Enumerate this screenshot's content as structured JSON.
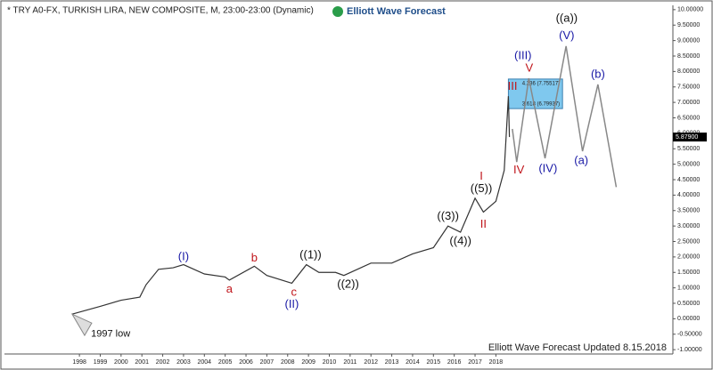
{
  "chart_data": {
    "type": "line",
    "title": "* TRY A0-FX, TURKISH LIRA, NEW COMPOSITE, M, 23:00-23:00 (Dynamic)",
    "logo": "Elliott Wave Forecast",
    "footer": "Elliott Wave Forecast Updated 8.15.2018",
    "last_price": {
      "value": 5.879,
      "label": "5.87900"
    },
    "xlim": [
      1994.4,
      2026.5
    ],
    "ylim": [
      -1.14,
      10.14
    ],
    "xticks": [
      1998,
      1999,
      2000,
      2001,
      2002,
      2003,
      2004,
      2005,
      2006,
      2007,
      2008,
      2009,
      2010,
      2011,
      2012,
      2013,
      2014,
      2015,
      2016,
      2017,
      2018
    ],
    "yticks": [
      {
        "value": 10,
        "label": "10.00000"
      },
      {
        "value": 9.5,
        "label": "9.50000"
      },
      {
        "value": 9,
        "label": "9.00000"
      },
      {
        "value": 8.5,
        "label": "8.50000"
      },
      {
        "value": 8,
        "label": "8.00000"
      },
      {
        "value": 7.5,
        "label": "7.50000"
      },
      {
        "value": 7,
        "label": "7.00000"
      },
      {
        "value": 6.5,
        "label": "6.50000"
      },
      {
        "value": 6,
        "label": "6.00000"
      },
      {
        "value": 5.5,
        "label": "5.50000"
      },
      {
        "value": 5,
        "label": "5.00000"
      },
      {
        "value": 4.5,
        "label": "4.50000"
      },
      {
        "value": 4,
        "label": "4.00000"
      },
      {
        "value": 3.5,
        "label": "3.50000"
      },
      {
        "value": 3,
        "label": "3.00000"
      },
      {
        "value": 2.5,
        "label": "2.50000"
      },
      {
        "value": 2,
        "label": "2.00000"
      },
      {
        "value": 1.5,
        "label": "1.50000"
      },
      {
        "value": 1,
        "label": "1.00000"
      },
      {
        "value": 0.5,
        "label": "0.50000"
      },
      {
        "value": 0,
        "label": "0.00000"
      },
      {
        "value": -0.5,
        "label": "-0.50000"
      },
      {
        "value": -1,
        "label": "-1.00000"
      }
    ],
    "series": [
      {
        "name": "Price",
        "color": "#333333",
        "x": [
          1997.65,
          1999,
          2000,
          2000.9,
          2001.2,
          2001.8,
          2002.5,
          2003,
          2004,
          2005,
          2005.2,
          2006.4,
          2007,
          2008.2,
          2008.9,
          2009.5,
          2010.3,
          2010.7,
          2012,
          2013,
          2014,
          2015,
          2015.7,
          2016.3,
          2017,
          2017.4,
          2018,
          2018.4,
          2018.6,
          2018.65
        ],
        "values": [
          0.15,
          0.4,
          0.6,
          0.7,
          1.1,
          1.6,
          1.65,
          1.75,
          1.45,
          1.35,
          1.25,
          1.7,
          1.4,
          1.15,
          1.75,
          1.5,
          1.5,
          1.4,
          1.8,
          1.8,
          2.1,
          2.3,
          3.0,
          2.8,
          3.9,
          3.45,
          3.8,
          4.8,
          7.2,
          5.879
        ]
      },
      {
        "name": "Projection",
        "color": "#888888",
        "x": [
          2018.79,
          2019.0,
          2019.58,
          2020.36,
          2021.37,
          2022.16,
          2022.9,
          2023.78
        ],
        "values": [
          6.14,
          5.07,
          7.78,
          5.19,
          8.82,
          5.42,
          7.58,
          4.26
        ]
      }
    ],
    "fib_box": {
      "x": [
        2018.6,
        2021.2
      ],
      "values": [
        6.79937,
        7.75517
      ],
      "labels": [
        "4.236 (7.75517)",
        "3.618 (6.79937)"
      ],
      "color": "#7fc8ee"
    },
    "annotations": [
      {
        "text": "(I)",
        "color": "#1a1aa6",
        "x": 2003,
        "y": 2.0
      },
      {
        "text": "a",
        "color": "#c0141a",
        "x": 2005.2,
        "y": 0.95
      },
      {
        "text": "b",
        "color": "#c0141a",
        "x": 2006.4,
        "y": 1.95
      },
      {
        "text": "c",
        "color": "#c0141a",
        "x": 2008.3,
        "y": 0.85
      },
      {
        "text": "(II)",
        "color": "#1a1aa6",
        "x": 2008.2,
        "y": 0.45
      },
      {
        "text": "((1))",
        "color": "#111111",
        "x": 2009.1,
        "y": 2.05
      },
      {
        "text": "((2))",
        "color": "#111111",
        "x": 2010.9,
        "y": 1.1
      },
      {
        "text": "((3))",
        "color": "#111111",
        "x": 2015.7,
        "y": 3.3
      },
      {
        "text": "((4))",
        "color": "#111111",
        "x": 2016.3,
        "y": 2.5
      },
      {
        "text": "((5))",
        "color": "#111111",
        "x": 2017.3,
        "y": 4.2
      },
      {
        "text": "I",
        "color": "#c0141a",
        "x": 2017.3,
        "y": 4.6
      },
      {
        "text": "II",
        "color": "#c0141a",
        "x": 2017.4,
        "y": 3.05
      },
      {
        "text": "III",
        "color": "#c0141a",
        "x": 2018.8,
        "y": 7.5
      },
      {
        "text": "IV",
        "color": "#c0141a",
        "x": 2019.1,
        "y": 4.8
      },
      {
        "text": "V",
        "color": "#c0141a",
        "x": 2019.6,
        "y": 8.1
      },
      {
        "text": "(III)",
        "color": "#1a1aa6",
        "x": 2019.3,
        "y": 8.5
      },
      {
        "text": "(IV)",
        "color": "#1a1aa6",
        "x": 2020.5,
        "y": 4.85
      },
      {
        "text": "(V)",
        "color": "#1a1aa6",
        "x": 2021.4,
        "y": 9.15
      },
      {
        "text": "((a))",
        "color": "#111111",
        "x": 2021.4,
        "y": 9.7
      },
      {
        "text": "(a)",
        "color": "#1a1aa6",
        "x": 2022.1,
        "y": 5.1
      },
      {
        "text": "(b)",
        "color": "#1a1aa6",
        "x": 2022.9,
        "y": 7.9
      },
      {
        "text": "1997 low",
        "color": "#111111",
        "x": 1999.5,
        "y": -0.5
      }
    ]
  }
}
